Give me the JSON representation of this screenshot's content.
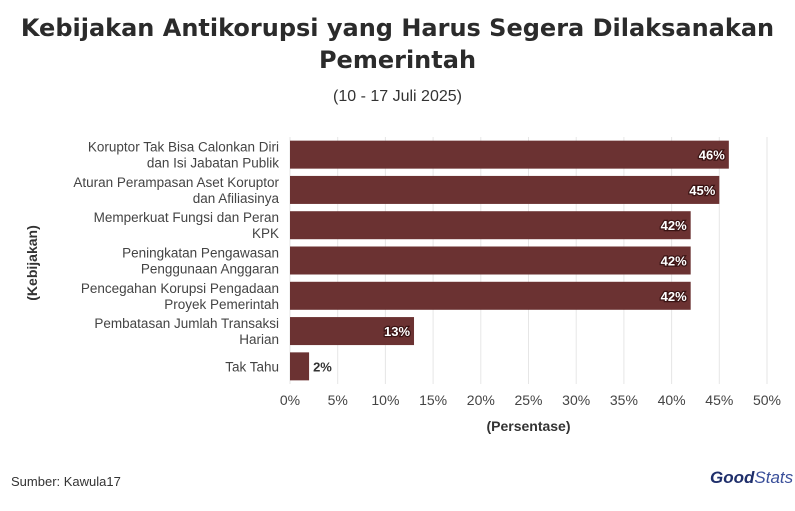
{
  "title": "Kebijakan Antikorupsi yang Harus Segera Dilaksanakan Pemerintah",
  "subtitle": "(10 - 17 Juli 2025)",
  "source": "Sumber: Kawula17",
  "logo": {
    "part1": "Good",
    "part2": "Stats"
  },
  "colors": {
    "bar": "#6b3232",
    "grid": "#e6e6e6",
    "text": "#333333"
  },
  "chart_data": {
    "type": "bar",
    "orientation": "horizontal",
    "xlabel": "(Persentase)",
    "ylabel": "(Kebijakan)",
    "xlim": [
      0,
      50
    ],
    "x_ticks": [
      "0%",
      "5%",
      "10%",
      "15%",
      "20%",
      "25%",
      "30%",
      "35%",
      "40%",
      "45%",
      "50%"
    ],
    "grid": true,
    "categories": [
      [
        "Koruptor Tak Bisa Calonkan Diri",
        "dan Isi Jabatan Publik"
      ],
      [
        "Aturan Perampasan Aset Koruptor",
        "dan Afiliasinya"
      ],
      [
        "Memperkuat Fungsi dan Peran",
        "KPK"
      ],
      [
        "Peningkatan Pengawasan",
        "Penggunaan Anggaran"
      ],
      [
        "Pencegahan Korupsi Pengadaan",
        "Proyek Pemerintah"
      ],
      [
        "Pembatasan Jumlah Transaksi",
        "Harian"
      ],
      [
        "Tak Tahu"
      ]
    ],
    "values": [
      46,
      45,
      42,
      42,
      42,
      13,
      2
    ],
    "data_labels": [
      "46%",
      "45%",
      "42%",
      "42%",
      "42%",
      "13%",
      "2%"
    ]
  }
}
